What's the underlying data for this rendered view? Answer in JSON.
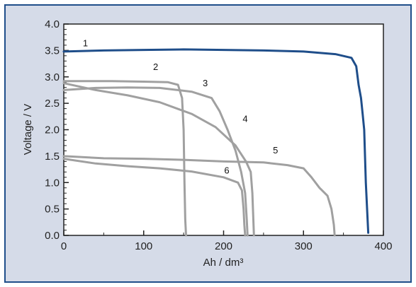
{
  "chart_data": {
    "type": "line",
    "title": "",
    "xlabel": "Ah / dm³",
    "ylabel": "Voltage / V",
    "xlim": [
      0,
      400
    ],
    "ylim": [
      0.0,
      4.0
    ],
    "xticks": [
      0,
      100,
      200,
      300,
      400
    ],
    "xtick_labels": [
      "0",
      "100",
      "200",
      "300",
      "400"
    ],
    "yticks": [
      0.0,
      0.5,
      1.0,
      1.5,
      2.0,
      2.5,
      3.0,
      3.5,
      4.0
    ],
    "ytick_labels": [
      "0.0",
      "0.5",
      "1.0",
      "1.5",
      "2.0",
      "2.5",
      "3.0",
      "3.5",
      "4.0"
    ],
    "grid": false,
    "series": [
      {
        "name": "1",
        "color": "#1f4e8a",
        "x": [
          0,
          50,
          100,
          150,
          200,
          250,
          300,
          340,
          360,
          366,
          369,
          372,
          374,
          376,
          378,
          381
        ],
        "y": [
          3.48,
          3.5,
          3.51,
          3.52,
          3.51,
          3.5,
          3.48,
          3.43,
          3.36,
          3.2,
          2.85,
          2.6,
          2.3,
          2.0,
          1.0,
          0.05
        ]
      },
      {
        "name": "2",
        "color": "#a0a0a0",
        "x": [
          0,
          20,
          60,
          100,
          130,
          143,
          148,
          150,
          151,
          152,
          153
        ],
        "y": [
          2.92,
          2.92,
          2.92,
          2.91,
          2.9,
          2.85,
          2.6,
          2.0,
          1.0,
          0.3,
          0.0
        ]
      },
      {
        "name": "3",
        "color": "#a0a0a0",
        "x": [
          0,
          40,
          80,
          120,
          160,
          185,
          195,
          205,
          215,
          222,
          227,
          229,
          230
        ],
        "y": [
          2.75,
          2.79,
          2.8,
          2.79,
          2.72,
          2.6,
          2.35,
          2.0,
          1.6,
          1.2,
          0.8,
          0.3,
          0.0
        ]
      },
      {
        "name": "4",
        "color": "#a0a0a0",
        "x": [
          0,
          40,
          80,
          120,
          160,
          190,
          215,
          228,
          234,
          236,
          237,
          238
        ],
        "y": [
          2.88,
          2.75,
          2.65,
          2.52,
          2.3,
          2.05,
          1.7,
          1.4,
          1.2,
          0.8,
          0.4,
          0.0
        ]
      },
      {
        "name": "5",
        "color": "#a0a0a0",
        "x": [
          0,
          50,
          100,
          150,
          200,
          250,
          280,
          300,
          310,
          320,
          330,
          335,
          338,
          339
        ],
        "y": [
          1.5,
          1.46,
          1.45,
          1.43,
          1.4,
          1.38,
          1.33,
          1.27,
          1.1,
          0.9,
          0.75,
          0.5,
          0.2,
          0.0
        ]
      },
      {
        "name": "6",
        "color": "#a0a0a0",
        "x": [
          0,
          40,
          80,
          120,
          160,
          200,
          218,
          223,
          225,
          226,
          227
        ],
        "y": [
          1.45,
          1.36,
          1.31,
          1.27,
          1.21,
          1.1,
          1.0,
          0.85,
          0.5,
          0.2,
          0.0
        ]
      }
    ],
    "series_labels": [
      {
        "text": "1",
        "x": 27,
        "y": 3.58
      },
      {
        "text": "2",
        "x": 115,
        "y": 3.13
      },
      {
        "text": "3",
        "x": 177,
        "y": 2.82
      },
      {
        "text": "4",
        "x": 227,
        "y": 2.15
      },
      {
        "text": "5",
        "x": 265,
        "y": 1.55
      },
      {
        "text": "6",
        "x": 204,
        "y": 1.17
      }
    ]
  }
}
